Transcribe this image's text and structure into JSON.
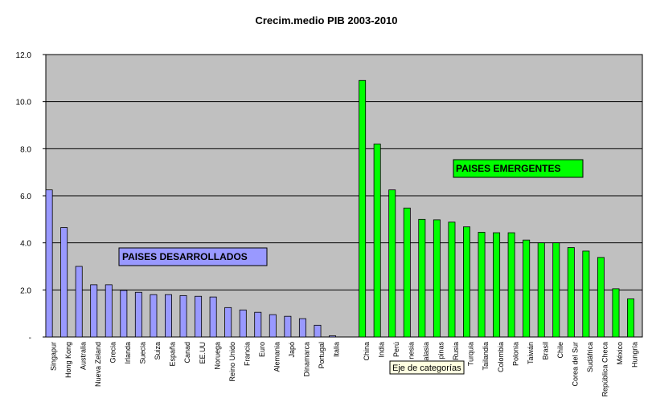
{
  "chart_data": {
    "type": "bar",
    "title": "Crecim.medio PIB 2003-2010",
    "xlabel": "",
    "ylabel": "",
    "ylim": [
      0,
      12
    ],
    "y_ticks": [
      "-",
      "2.0",
      "4.0",
      "6.0",
      "8.0",
      "10.0",
      "12.0"
    ],
    "grid": true,
    "background": "#c0c0c0",
    "groups": [
      {
        "label": "PAISES DESARROLLADOS",
        "color": "#9999ff",
        "categories": [
          "Singapur",
          "Hong Kong",
          "Australia",
          "Nueva Zeland",
          "Grecia",
          "Irlanda",
          "Suecia",
          "Suiza",
          "España",
          "Canad",
          "EE.UU",
          "Noruega",
          "Reino Unido",
          "Francia",
          "Euro",
          "Alemania",
          "Japó",
          "Dinamarca",
          "Portugal",
          "Italia"
        ],
        "values": [
          6.25,
          4.65,
          3.0,
          2.22,
          2.22,
          1.98,
          1.9,
          1.8,
          1.8,
          1.76,
          1.73,
          1.7,
          1.25,
          1.15,
          1.05,
          0.95,
          0.88,
          0.78,
          0.5,
          0.05
        ]
      },
      {
        "label": "PAISES EMERGENTES",
        "color": "#00ff00",
        "categories": [
          "China",
          "India",
          "Perú",
          "nesia",
          "alasia",
          "pinas",
          "Rusia",
          "Turquia",
          "Tailandia",
          "Colombia",
          "Polonia",
          "Taiwán",
          "Brasil",
          "Chile",
          "Corea del Sur",
          "Sudáfrica",
          "República Checa",
          "México",
          "Hungría"
        ],
        "values": [
          10.9,
          8.2,
          6.25,
          5.48,
          5.0,
          4.98,
          4.88,
          4.68,
          4.45,
          4.43,
          4.43,
          4.12,
          4.0,
          4.0,
          3.8,
          3.65,
          3.38,
          2.05,
          1.62
        ]
      }
    ],
    "tooltip": "Eje de categorías"
  }
}
